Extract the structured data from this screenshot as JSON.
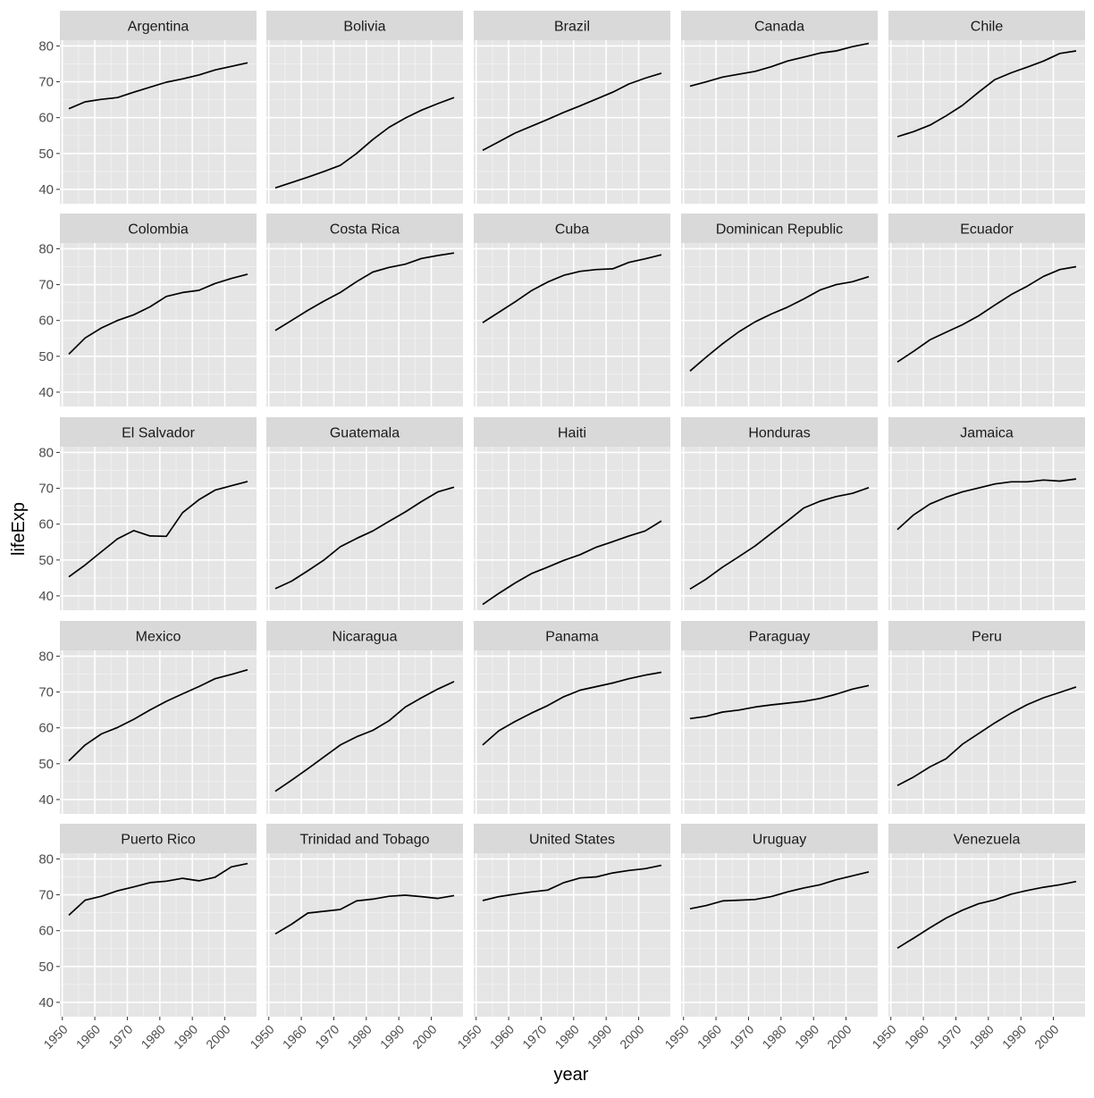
{
  "chart_data": {
    "type": "line",
    "layout": "facet_wrap",
    "xlabel": "year",
    "ylabel": "lifeExp",
    "xlim": [
      1949.25,
      2009.75
    ],
    "ylim": [
      36.0,
      81.6
    ],
    "x_ticks": [
      1950,
      1960,
      1970,
      1980,
      1990,
      2000
    ],
    "y_ticks": [
      40,
      50,
      60,
      70,
      80
    ],
    "x": [
      1952,
      1957,
      1962,
      1967,
      1972,
      1977,
      1982,
      1987,
      1992,
      1997,
      2002,
      2007
    ],
    "grid": true,
    "panel_background": "#e5e5e5",
    "strip_background": "#d9d9d9",
    "line_color": "#000000",
    "series": [
      {
        "name": "Argentina",
        "values": [
          62.5,
          64.4,
          65.1,
          65.6,
          67.1,
          68.5,
          69.9,
          70.8,
          71.9,
          73.3,
          74.3,
          75.3
        ]
      },
      {
        "name": "Bolivia",
        "values": [
          40.4,
          41.9,
          43.4,
          45.0,
          46.7,
          50.0,
          53.9,
          57.3,
          59.9,
          62.1,
          63.9,
          65.6
        ]
      },
      {
        "name": "Brazil",
        "values": [
          50.9,
          53.3,
          55.7,
          57.6,
          59.5,
          61.5,
          63.3,
          65.2,
          67.1,
          69.4,
          71.0,
          72.4
        ]
      },
      {
        "name": "Canada",
        "values": [
          68.8,
          70.0,
          71.3,
          72.1,
          72.9,
          74.2,
          75.8,
          76.9,
          78.0,
          78.6,
          79.8,
          80.7
        ]
      },
      {
        "name": "Chile",
        "values": [
          54.7,
          56.1,
          57.9,
          60.5,
          63.4,
          67.1,
          70.6,
          72.5,
          74.1,
          75.8,
          77.9,
          78.6
        ]
      },
      {
        "name": "Colombia",
        "values": [
          50.6,
          55.1,
          57.9,
          60.0,
          61.6,
          63.8,
          66.7,
          67.8,
          68.4,
          70.3,
          71.7,
          72.9
        ]
      },
      {
        "name": "Costa Rica",
        "values": [
          57.2,
          60.0,
          62.8,
          65.4,
          67.8,
          70.8,
          73.5,
          74.8,
          75.7,
          77.3,
          78.1,
          78.8
        ]
      },
      {
        "name": "Cuba",
        "values": [
          59.4,
          62.3,
          65.2,
          68.3,
          70.7,
          72.6,
          73.7,
          74.2,
          74.4,
          76.2,
          77.2,
          78.3
        ]
      },
      {
        "name": "Dominican Republic",
        "values": [
          45.9,
          49.8,
          53.5,
          56.8,
          59.6,
          61.8,
          63.7,
          66.0,
          68.5,
          70.0,
          70.8,
          72.2
        ]
      },
      {
        "name": "Ecuador",
        "values": [
          48.4,
          51.4,
          54.6,
          56.7,
          58.8,
          61.3,
          64.3,
          67.2,
          69.6,
          72.3,
          74.2,
          75.0
        ]
      },
      {
        "name": "El Salvador",
        "values": [
          45.3,
          48.6,
          52.3,
          55.9,
          58.2,
          56.7,
          56.6,
          63.2,
          66.8,
          69.5,
          70.7,
          71.9
        ]
      },
      {
        "name": "Guatemala",
        "values": [
          42.0,
          44.1,
          47.0,
          50.0,
          53.7,
          56.0,
          58.1,
          60.8,
          63.4,
          66.3,
          68.98,
          70.3
        ]
      },
      {
        "name": "Haiti",
        "values": [
          37.6,
          40.7,
          43.6,
          46.2,
          48.0,
          49.9,
          51.5,
          53.6,
          55.1,
          56.7,
          58.1,
          60.9
        ]
      },
      {
        "name": "Honduras",
        "values": [
          41.9,
          44.7,
          48.0,
          50.9,
          53.9,
          57.4,
          60.9,
          64.5,
          66.4,
          67.7,
          68.6,
          70.2
        ]
      },
      {
        "name": "Jamaica",
        "values": [
          58.5,
          62.6,
          65.6,
          67.5,
          69.0,
          70.1,
          71.2,
          71.8,
          71.8,
          72.3,
          72.0,
          72.6
        ]
      },
      {
        "name": "Mexico",
        "values": [
          50.8,
          55.2,
          58.3,
          60.1,
          62.4,
          65.0,
          67.4,
          69.5,
          71.5,
          73.7,
          74.9,
          76.2
        ]
      },
      {
        "name": "Nicaragua",
        "values": [
          42.3,
          45.4,
          48.6,
          51.9,
          55.2,
          57.5,
          59.3,
          62.0,
          65.8,
          68.4,
          70.8,
          72.9
        ]
      },
      {
        "name": "Panama",
        "values": [
          55.2,
          59.2,
          61.8,
          64.1,
          66.2,
          68.7,
          70.5,
          71.5,
          72.5,
          73.7,
          74.7,
          75.5
        ]
      },
      {
        "name": "Paraguay",
        "values": [
          62.6,
          63.2,
          64.4,
          64.95,
          65.8,
          66.4,
          66.9,
          67.4,
          68.2,
          69.4,
          70.8,
          71.8
        ]
      },
      {
        "name": "Peru",
        "values": [
          43.9,
          46.3,
          49.1,
          51.4,
          55.4,
          58.4,
          61.4,
          64.1,
          66.5,
          68.4,
          69.9,
          71.4
        ]
      },
      {
        "name": "Puerto Rico",
        "values": [
          64.3,
          68.5,
          69.6,
          71.1,
          72.2,
          73.4,
          73.8,
          74.6,
          73.9,
          74.9,
          77.8,
          78.7
        ]
      },
      {
        "name": "Trinidad and Tobago",
        "values": [
          59.1,
          61.8,
          64.9,
          65.4,
          65.9,
          68.3,
          68.8,
          69.6,
          69.9,
          69.5,
          68.98,
          69.8
        ]
      },
      {
        "name": "United States",
        "values": [
          68.4,
          69.5,
          70.2,
          70.8,
          71.3,
          73.4,
          74.7,
          75.0,
          76.1,
          76.8,
          77.3,
          78.2
        ]
      },
      {
        "name": "Uruguay",
        "values": [
          66.1,
          67.0,
          68.3,
          68.5,
          68.7,
          69.5,
          70.8,
          71.9,
          72.8,
          74.2,
          75.3,
          76.4
        ]
      },
      {
        "name": "Venezuela",
        "values": [
          55.1,
          57.9,
          60.8,
          63.5,
          65.7,
          67.5,
          68.6,
          70.2,
          71.2,
          72.1,
          72.8,
          73.7
        ]
      }
    ]
  }
}
